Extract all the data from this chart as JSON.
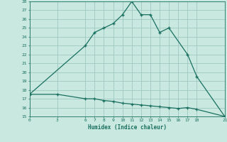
{
  "xlabel": "Humidex (Indice chaleur)",
  "background_color": "#c8e8e0",
  "grid_color": "#a0c8c0",
  "line_color": "#1a7060",
  "x_ticks": [
    0,
    3,
    6,
    7,
    8,
    9,
    10,
    11,
    12,
    13,
    14,
    15,
    16,
    17,
    18,
    21
  ],
  "ylim": [
    15,
    28
  ],
  "y_ticks": [
    15,
    16,
    17,
    18,
    19,
    20,
    21,
    22,
    23,
    24,
    25,
    26,
    27,
    28
  ],
  "xlim": [
    0,
    21
  ],
  "curve1_x": [
    0,
    6,
    7,
    8,
    9,
    10,
    11,
    12,
    13,
    14,
    15,
    17,
    18,
    21
  ],
  "curve1_y": [
    17.5,
    23.0,
    24.5,
    25.0,
    25.5,
    26.5,
    28.0,
    26.5,
    26.5,
    24.5,
    25.0,
    22.0,
    19.5,
    15.0
  ],
  "curve2_x": [
    0,
    3,
    6,
    7,
    8,
    9,
    10,
    11,
    12,
    13,
    14,
    15,
    16,
    17,
    18,
    21
  ],
  "curve2_y": [
    17.5,
    17.5,
    17.0,
    17.0,
    16.8,
    16.7,
    16.5,
    16.4,
    16.3,
    16.2,
    16.1,
    16.0,
    15.9,
    16.0,
    15.8,
    15.0
  ]
}
